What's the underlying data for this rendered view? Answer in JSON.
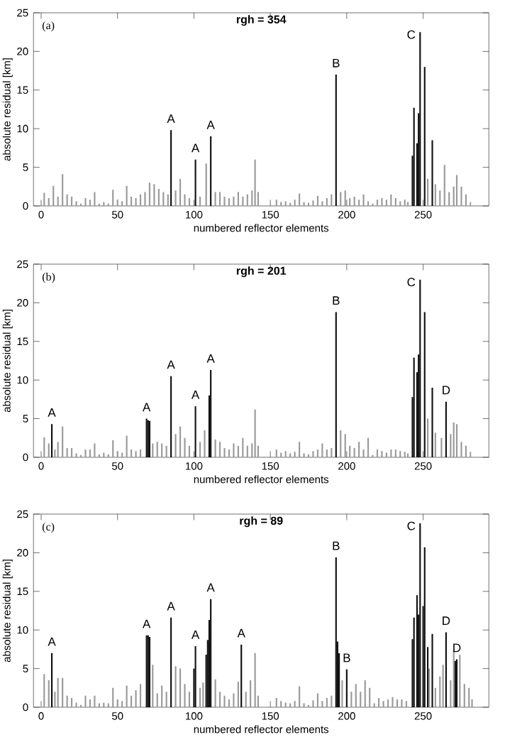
{
  "chart_data": [
    {
      "type": "bar",
      "title": "rgh = 354",
      "xlabel": "numbered reflector elements",
      "ylabel": "absolute residual [km]",
      "xlim": [
        -5,
        293
      ],
      "ylim": [
        0,
        25
      ],
      "xticks": [
        0,
        50,
        100,
        150,
        200,
        250
      ],
      "yticks": [
        0,
        5,
        10,
        15,
        20,
        25
      ],
      "series": [
        {
          "color": "#9a9a9a",
          "x": [
            2,
            5,
            8,
            11,
            14,
            17,
            20,
            23,
            26,
            29,
            32,
            35,
            38,
            41,
            44,
            47,
            50,
            53,
            56,
            59,
            62,
            65,
            68,
            71,
            74,
            77,
            80,
            83,
            88,
            91,
            94,
            97,
            104,
            108,
            114,
            117,
            120,
            123,
            126,
            129,
            132,
            135,
            138,
            140,
            142,
            154,
            157,
            160,
            163,
            166,
            169,
            172,
            175,
            178,
            181,
            184,
            187,
            190,
            196,
            199,
            202,
            205,
            208,
            211,
            214,
            217,
            220,
            223,
            226,
            229,
            232,
            235,
            238,
            240,
            253,
            258,
            261,
            264,
            267,
            270,
            272,
            275,
            278,
            281
          ],
          "values": [
            1.7,
            1.0,
            2.6,
            1.2,
            4.1,
            1.5,
            1.2,
            0.6,
            0.3,
            1.0,
            0.8,
            1.8,
            0.3,
            0.5,
            0.3,
            2.1,
            0.8,
            0.6,
            2.6,
            1.2,
            1.0,
            1.5,
            1.8,
            3.0,
            2.8,
            2.2,
            1.8,
            1.5,
            2.0,
            3.5,
            1.5,
            1.0,
            1.2,
            5.5,
            1.8,
            1.8,
            1.2,
            1.0,
            1.2,
            1.8,
            1.2,
            1.5,
            2.0,
            6.0,
            1.8,
            0.8,
            0.5,
            0.6,
            0.4,
            0.8,
            1.6,
            0.5,
            0.4,
            0.7,
            1.3,
            0.6,
            1.0,
            1.5,
            1.8,
            2.0,
            1.0,
            1.2,
            0.8,
            1.5,
            0.6,
            0.3,
            0.8,
            1.0,
            0.8,
            1.5,
            1.0,
            0.6,
            0.8,
            0.5,
            3.5,
            2.8,
            2.0,
            5.3,
            1.8,
            2.5,
            4.0,
            2.5,
            1.5,
            0.5
          ]
        },
        {
          "color": "#111111",
          "x": [
            85,
            101,
            111,
            193,
            243,
            244,
            246,
            247,
            248,
            251,
            256
          ],
          "values": [
            9.8,
            6.0,
            9.0,
            17.0,
            6.5,
            12.7,
            8.1,
            12.0,
            22.5,
            18.0,
            8.5
          ]
        }
      ],
      "annotations": [
        "(a)",
        {
          "text": "A",
          "x": 85,
          "y": 9.8
        },
        {
          "text": "A",
          "x": 101,
          "y": 6.0
        },
        {
          "text": "A",
          "x": 111,
          "y": 9.0
        },
        {
          "text": "B",
          "x": 193,
          "y": 17.0
        },
        {
          "text": "C",
          "x": 248,
          "y": 22.5
        }
      ]
    },
    {
      "type": "bar",
      "title": "rgh = 201",
      "xlabel": "numbered reflector elements",
      "ylabel": "absolute residual [km]",
      "xlim": [
        -5,
        293
      ],
      "ylim": [
        0,
        25
      ],
      "xticks": [
        0,
        50,
        100,
        150,
        200,
        250
      ],
      "yticks": [
        0,
        5,
        10,
        15,
        20,
        25
      ],
      "series": [
        {
          "color": "#9a9a9a",
          "x": [
            2,
            5,
            9,
            11,
            14,
            17,
            20,
            23,
            26,
            29,
            32,
            35,
            38,
            41,
            44,
            47,
            50,
            53,
            56,
            59,
            62,
            65,
            73,
            76,
            79,
            82,
            88,
            91,
            94,
            97,
            104,
            107,
            114,
            117,
            120,
            123,
            126,
            129,
            132,
            135,
            138,
            140,
            142,
            154,
            157,
            160,
            163,
            166,
            169,
            172,
            175,
            178,
            181,
            184,
            187,
            190,
            196,
            199,
            202,
            205,
            208,
            211,
            214,
            217,
            220,
            223,
            226,
            229,
            232,
            235,
            238,
            240,
            253,
            258,
            262,
            268,
            270,
            272,
            275,
            278,
            281
          ],
          "values": [
            2.6,
            1.8,
            1.0,
            2.0,
            4.0,
            1.2,
            1.2,
            0.5,
            0.3,
            1.0,
            1.0,
            1.8,
            0.4,
            0.6,
            0.4,
            2.2,
            0.8,
            0.6,
            2.8,
            1.0,
            0.8,
            1.0,
            1.8,
            2.0,
            1.8,
            1.5,
            3.0,
            4.0,
            2.5,
            1.5,
            2.0,
            3.5,
            2.3,
            2.0,
            1.2,
            1.0,
            1.8,
            1.5,
            2.5,
            1.5,
            1.8,
            6.2,
            1.5,
            1.0,
            0.6,
            0.8,
            0.5,
            0.7,
            2.0,
            0.5,
            0.4,
            0.8,
            1.0,
            1.8,
            1.0,
            1.2,
            3.5,
            3.0,
            1.5,
            1.2,
            2.0,
            1.0,
            2.5,
            0.3,
            1.0,
            0.8,
            0.6,
            1.0,
            1.0,
            0.8,
            0.7,
            0.5,
            5.0,
            3.2,
            2.5,
            3.0,
            4.5,
            4.3,
            2.0,
            1.5,
            0.7
          ]
        },
        {
          "color": "#111111",
          "x": [
            7,
            69,
            70,
            71,
            85,
            101,
            110,
            111,
            193,
            243,
            244,
            246,
            247,
            248,
            251,
            256,
            265
          ],
          "values": [
            4.3,
            5.0,
            4.8,
            4.7,
            10.5,
            6.6,
            8.0,
            11.3,
            18.8,
            7.8,
            12.9,
            11.0,
            13.3,
            23.0,
            18.8,
            9.0,
            7.2
          ]
        }
      ],
      "annotations": [
        "(b)",
        {
          "text": "A",
          "x": 7,
          "y": 4.3
        },
        {
          "text": "A",
          "x": 69,
          "y": 5.0
        },
        {
          "text": "A",
          "x": 85,
          "y": 10.5
        },
        {
          "text": "A",
          "x": 101,
          "y": 6.6
        },
        {
          "text": "A",
          "x": 111,
          "y": 11.3
        },
        {
          "text": "B",
          "x": 193,
          "y": 18.8
        },
        {
          "text": "C",
          "x": 248,
          "y": 23.0
        },
        {
          "text": "D",
          "x": 265,
          "y": 7.2
        }
      ]
    },
    {
      "type": "bar",
      "title": "rgh = 89",
      "xlabel": "numbered reflector elements",
      "ylabel": "absolute residual [km]",
      "xlim": [
        -5,
        293
      ],
      "ylim": [
        0,
        25
      ],
      "xticks": [
        0,
        50,
        100,
        150,
        200,
        250
      ],
      "yticks": [
        0,
        5,
        10,
        15,
        20,
        25
      ],
      "series": [
        {
          "color": "#9a9a9a",
          "x": [
            2,
            5,
            9,
            11,
            14,
            17,
            20,
            23,
            26,
            29,
            32,
            35,
            38,
            41,
            44,
            47,
            50,
            53,
            56,
            59,
            62,
            65,
            73,
            76,
            79,
            82,
            88,
            91,
            94,
            97,
            104,
            106,
            114,
            117,
            120,
            123,
            126,
            129,
            134,
            137,
            140,
            142,
            154,
            157,
            160,
            163,
            166,
            169,
            172,
            175,
            178,
            181,
            184,
            187,
            190,
            197,
            203,
            206,
            209,
            212,
            215,
            218,
            221,
            224,
            227,
            230,
            233,
            236,
            239,
            254,
            258,
            261,
            263,
            268,
            270,
            274,
            277,
            280,
            282
          ],
          "values": [
            4.3,
            3.5,
            2.0,
            3.8,
            3.8,
            1.5,
            1.2,
            0.6,
            0.3,
            1.5,
            1.0,
            1.5,
            0.5,
            0.6,
            0.5,
            2.5,
            1.0,
            0.8,
            2.8,
            1.5,
            2.2,
            3.0,
            5.5,
            1.8,
            2.8,
            2.0,
            5.3,
            5.0,
            3.0,
            2.0,
            2.5,
            3.2,
            3.6,
            2.0,
            1.5,
            1.0,
            1.8,
            3.3,
            2.0,
            3.5,
            7.0,
            1.5,
            1.2,
            0.8,
            0.6,
            0.5,
            0.8,
            2.7,
            0.5,
            0.3,
            0.9,
            1.8,
            0.8,
            1.2,
            1.5,
            3.5,
            2.0,
            3.0,
            2.0,
            3.5,
            2.5,
            0.5,
            1.2,
            0.8,
            1.0,
            1.3,
            1.0,
            1.0,
            0.8,
            5.0,
            2.5,
            4.0,
            5.5,
            3.5,
            7.3,
            6.8,
            3.0,
            2.5,
            1.0
          ]
        },
        {
          "color": "#111111",
          "x": [
            7,
            69,
            70,
            71,
            85,
            100,
            101,
            108,
            109,
            110,
            111,
            131,
            193,
            194,
            195,
            200,
            243,
            244,
            246,
            247,
            248,
            250,
            251,
            253,
            256,
            265,
            271,
            272
          ],
          "values": [
            7.0,
            9.3,
            9.3,
            9.1,
            11.6,
            5.0,
            7.9,
            6.8,
            8.7,
            11.3,
            14.0,
            8.1,
            19.4,
            8.5,
            7.0,
            4.9,
            8.8,
            11.6,
            14.5,
            12.0,
            23.8,
            13.1,
            20.7,
            7.8,
            9.5,
            9.7,
            6.0,
            6.2
          ]
        }
      ],
      "annotations": [
        "(c)",
        {
          "text": "A",
          "x": 7,
          "y": 7.0
        },
        {
          "text": "A",
          "x": 69,
          "y": 9.3
        },
        {
          "text": "A",
          "x": 85,
          "y": 11.6
        },
        {
          "text": "A",
          "x": 101,
          "y": 7.9
        },
        {
          "text": "A",
          "x": 111,
          "y": 14.0
        },
        {
          "text": "A",
          "x": 131,
          "y": 8.1
        },
        {
          "text": "B",
          "x": 193,
          "y": 19.4
        },
        {
          "text": "B",
          "x": 200,
          "y": 4.9
        },
        {
          "text": "C",
          "x": 248,
          "y": 23.8
        },
        {
          "text": "D",
          "x": 265,
          "y": 9.7
        },
        {
          "text": "D",
          "x": 272,
          "y": 6.2
        }
      ]
    }
  ]
}
